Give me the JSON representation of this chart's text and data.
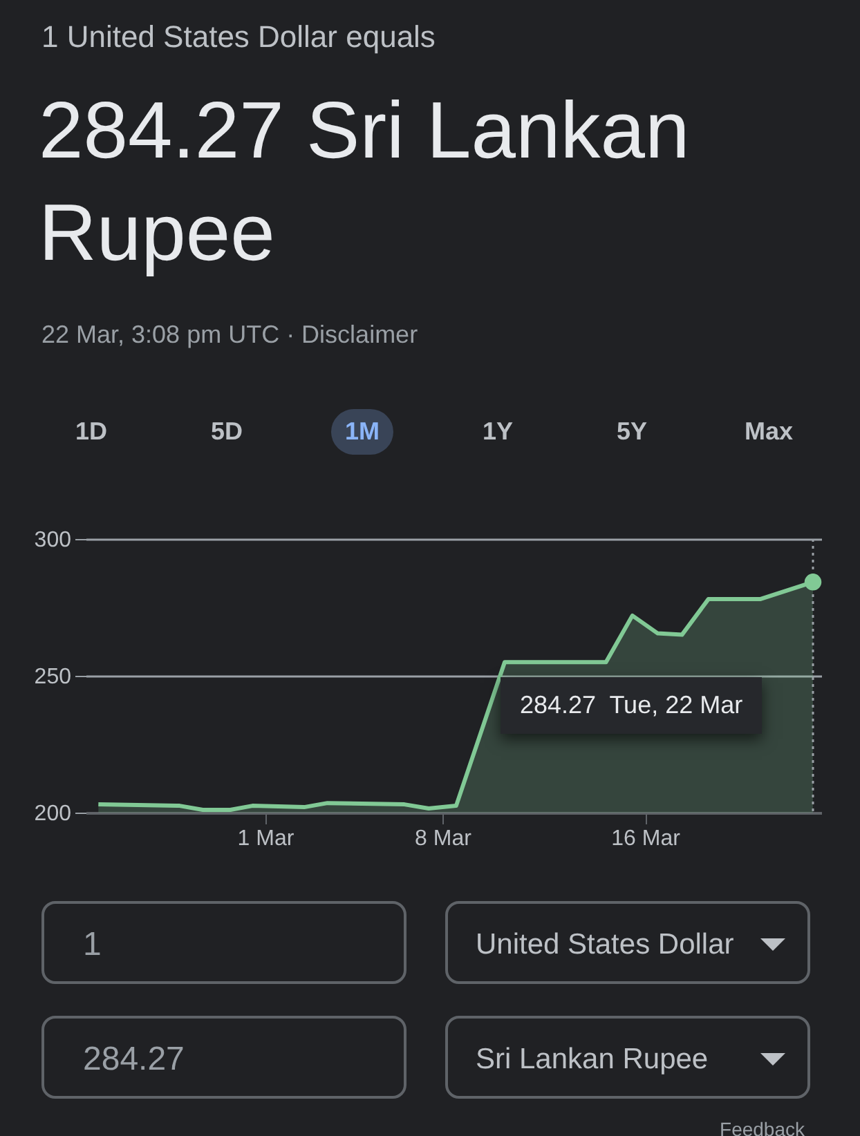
{
  "chart_data": {
    "type": "area",
    "subtitle": "1 United States Dollar equals",
    "title": "284.27 Sri Lankan Rupee",
    "x": [
      "--02-22T10:00",
      "--02-25T15:00",
      "--02-26T13:00",
      "--02-27T15:00",
      "--02-28T12:00",
      "--03-02T13:00",
      "--03-03T11:00",
      "--03-06T12:00",
      "--03-07T11:00",
      "--03-08T13:00",
      "--03-10T11:00",
      "--03-14T11:00",
      "--03-15T12:00",
      "--03-16T12:00",
      "--03-17T11:00",
      "--03-18T12:00",
      "--03-20T13:00",
      "--03-22T15:08"
    ],
    "series": [
      {
        "color": "#81c995",
        "values": [
          203,
          202.5,
          201,
          201,
          202.5,
          202,
          203.5,
          203,
          201.5,
          202.5,
          255,
          255,
          272,
          265.5,
          265,
          278,
          278,
          284.27
        ]
      }
    ],
    "xlim": [
      "--02-21T22:00",
      "--03-22T23:00"
    ],
    "xticks": [
      {
        "value": "--03-01",
        "label": "1 Mar"
      },
      {
        "value": "--03-08",
        "label": "8 Mar"
      },
      {
        "value": "--03-16",
        "label": "16 Mar"
      }
    ],
    "ylim": [
      200,
      300
    ],
    "yticks": [
      200,
      250,
      300
    ],
    "grid": "y",
    "ref_lines": [
      {
        "axis": "x",
        "value": "--03-22T15:08",
        "line_style": "dotted",
        "color": "#9aa0a6"
      }
    ],
    "annotations": [
      "22 Mar, 3:08 pm UTC · Disclaimer",
      "1D",
      "5D",
      "1M",
      "1Y",
      "5Y",
      "Max",
      "1",
      "United States Dollar",
      "284.27",
      "Sri Lankan Rupee",
      "Feedback",
      "284.27  Tue, 22 Mar"
    ]
  }
}
